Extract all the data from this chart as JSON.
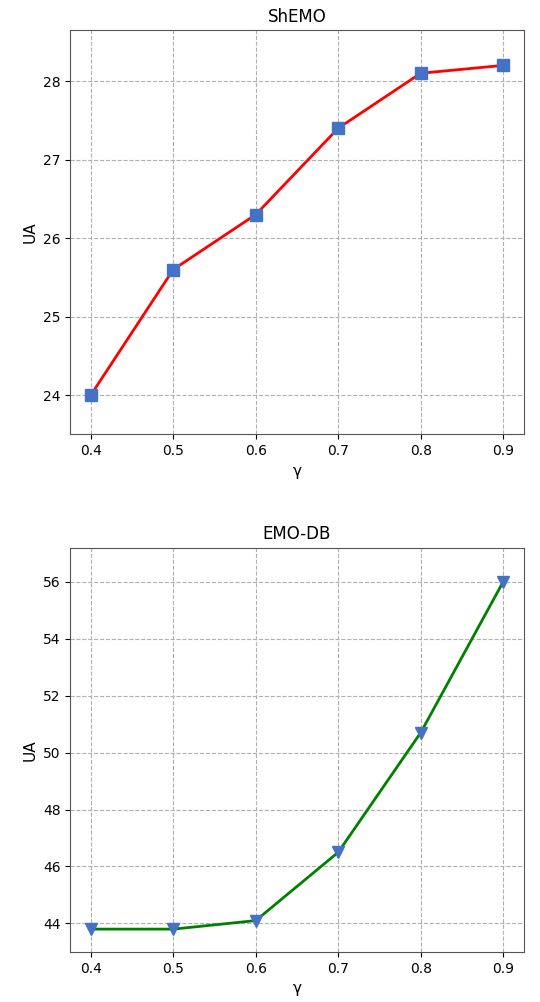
{
  "gamma": [
    0.4,
    0.5,
    0.6,
    0.7,
    0.8,
    0.9
  ],
  "shemo_ua": [
    24.0,
    25.6,
    26.3,
    27.4,
    28.1,
    28.2
  ],
  "emodb_ua": [
    43.8,
    43.8,
    44.1,
    46.5,
    50.7,
    56.0
  ],
  "shemo_title": "ShEMO",
  "emodb_title": "EMO-DB",
  "xlabel": "γ",
  "ylabel": "UA",
  "shemo_ylim": [
    23.5,
    28.65
  ],
  "emodb_ylim": [
    43.0,
    57.2
  ],
  "shemo_yticks": [
    24,
    25,
    26,
    27,
    28
  ],
  "emodb_yticks": [
    44,
    46,
    48,
    50,
    52,
    54,
    56
  ],
  "line_color_shemo": "#ff0000",
  "line_color_emodb": "#008000",
  "marker_color": "#4472c4",
  "marker_shemo": "s",
  "marker_emodb": "v",
  "marker_size": 8,
  "line_width": 2.0,
  "grid_color": "#b0b0b0",
  "grid_style": "--",
  "bg_color": "#ffffff",
  "title_fontsize": 12,
  "label_fontsize": 11,
  "tick_fontsize": 10
}
